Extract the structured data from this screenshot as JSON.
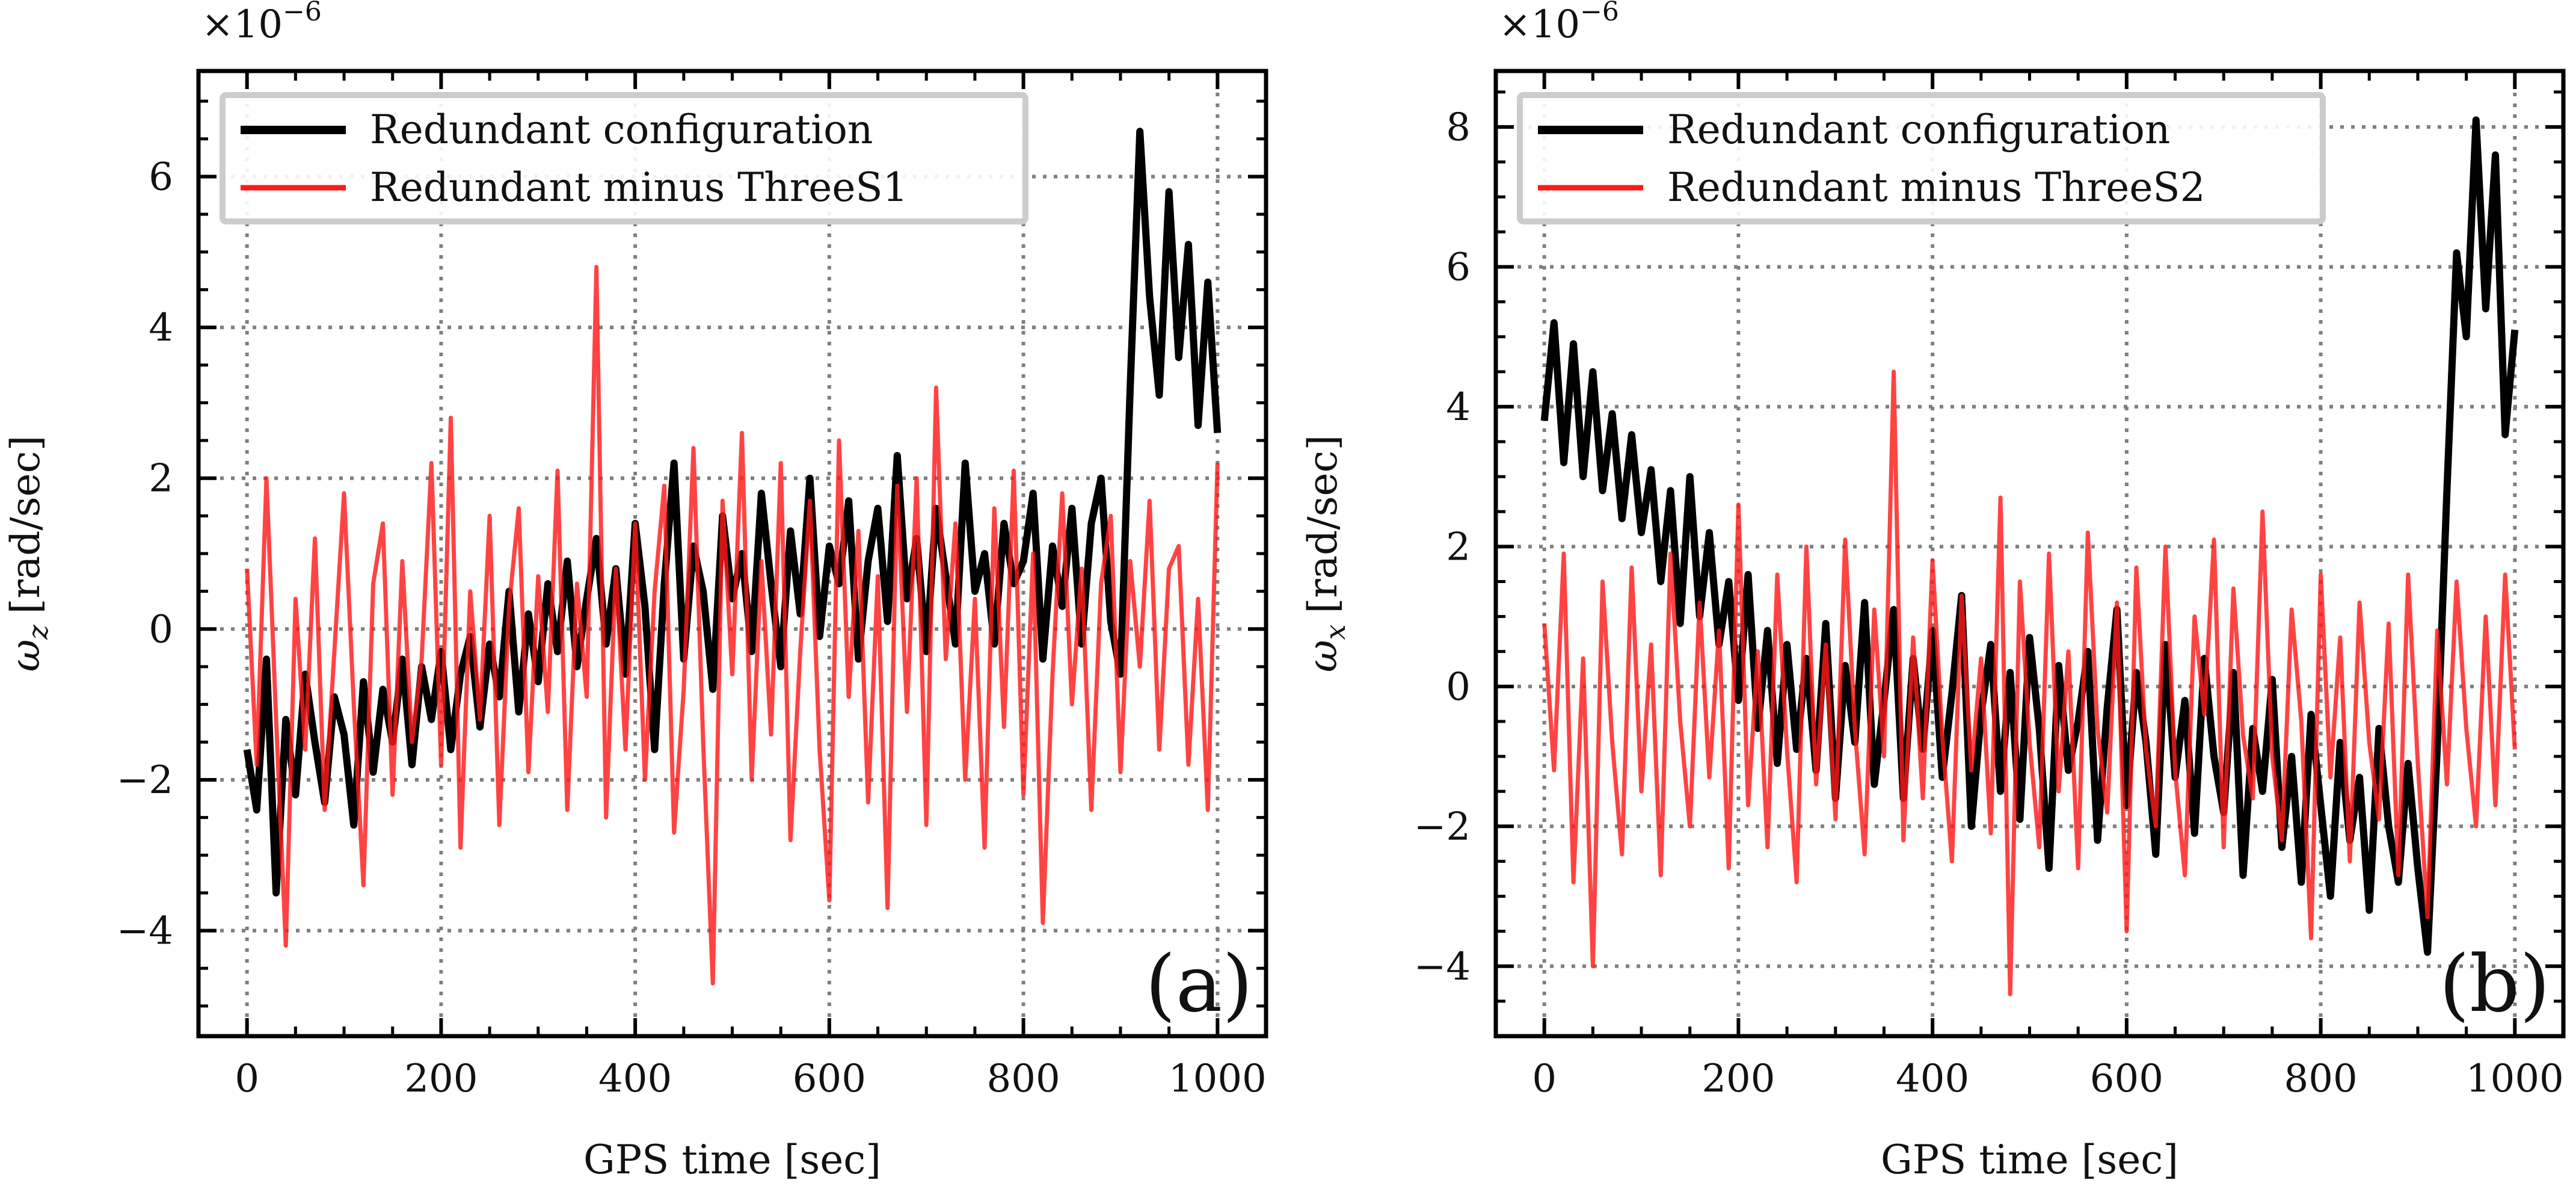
{
  "colors": {
    "series_black": "#000000",
    "series_red": "#ff1a1a",
    "grid": "#7f7f7f",
    "legend_border": "#cccccc"
  },
  "chart_data": [
    {
      "panel": "a",
      "type": "line",
      "panel_label": "(a)",
      "multiplier": "×10",
      "multiplier_exp": "−6",
      "xlabel": "GPS time [sec]",
      "ylabel_symbol": "ω",
      "ylabel_sub": "z",
      "ylabel_unit": "[rad/sec]",
      "xlim": [
        -50,
        1050
      ],
      "ylim": [
        -5.4,
        7.4
      ],
      "xticks": [
        0,
        200,
        400,
        600,
        800,
        1000
      ],
      "xtick_labels": [
        "0",
        "200",
        "400",
        "600",
        "800",
        "1000"
      ],
      "yticks": [
        -4,
        -2,
        0,
        2,
        4,
        6
      ],
      "ytick_labels": [
        "−4",
        "−2",
        "0",
        "2",
        "4",
        "6"
      ],
      "grid": true,
      "legend_position": "top-left",
      "series": [
        {
          "name": "Redundant configuration",
          "color": "#000000",
          "x": [
            0,
            10,
            20,
            30,
            40,
            50,
            60,
            70,
            80,
            90,
            100,
            110,
            120,
            130,
            140,
            150,
            160,
            170,
            180,
            190,
            200,
            210,
            220,
            230,
            240,
            250,
            260,
            270,
            280,
            290,
            300,
            310,
            320,
            330,
            340,
            350,
            360,
            370,
            380,
            390,
            400,
            410,
            420,
            430,
            440,
            450,
            460,
            470,
            480,
            490,
            500,
            510,
            520,
            530,
            540,
            550,
            560,
            570,
            580,
            590,
            600,
            610,
            620,
            630,
            640,
            650,
            660,
            670,
            680,
            690,
            700,
            710,
            720,
            730,
            740,
            750,
            760,
            770,
            780,
            790,
            800,
            810,
            820,
            830,
            840,
            850,
            860,
            870,
            880,
            890,
            900,
            910,
            920,
            930,
            940,
            950,
            960,
            970,
            980,
            990,
            1000
          ],
          "values": [
            -1.6,
            -2.4,
            -0.4,
            -3.5,
            -1.2,
            -2.2,
            -0.6,
            -1.5,
            -2.3,
            -0.9,
            -1.4,
            -2.6,
            -0.7,
            -1.9,
            -0.8,
            -1.5,
            -0.4,
            -1.8,
            -0.5,
            -1.2,
            -0.3,
            -1.6,
            -0.6,
            -0.1,
            -1.3,
            -0.2,
            -0.9,
            0.5,
            -1.1,
            0.2,
            -0.7,
            0.6,
            -0.3,
            0.9,
            -0.5,
            0.4,
            1.2,
            -0.2,
            0.8,
            -0.6,
            1.4,
            0.3,
            -1.6,
            0.6,
            2.2,
            -0.4,
            1.1,
            0.5,
            -0.8,
            1.5,
            0.4,
            1.0,
            -0.3,
            1.8,
            0.6,
            -0.5,
            1.3,
            0.2,
            2.0,
            -0.1,
            1.1,
            0.6,
            1.7,
            -0.4,
            0.9,
            1.6,
            0.1,
            2.3,
            0.4,
            1.2,
            -0.3,
            1.6,
            0.7,
            -0.2,
            2.2,
            0.5,
            1.0,
            -0.2,
            1.4,
            0.6,
            0.9,
            1.8,
            -0.4,
            1.1,
            0.3,
            1.6,
            -0.2,
            1.4,
            2.0,
            0.1,
            -0.6,
            3.2,
            6.6,
            4.4,
            3.1,
            5.8,
            3.6,
            5.1,
            2.7,
            4.6,
            2.6
          ]
        },
        {
          "name": "Redundant minus ThreeS1",
          "color": "#ff1a1a",
          "x": [
            0,
            10,
            20,
            30,
            40,
            50,
            60,
            70,
            80,
            90,
            100,
            110,
            120,
            130,
            140,
            150,
            160,
            170,
            180,
            190,
            200,
            210,
            220,
            230,
            240,
            250,
            260,
            270,
            280,
            290,
            300,
            310,
            320,
            330,
            340,
            350,
            360,
            370,
            380,
            390,
            400,
            410,
            420,
            430,
            440,
            450,
            460,
            470,
            480,
            490,
            500,
            510,
            520,
            530,
            540,
            550,
            560,
            570,
            580,
            590,
            600,
            610,
            620,
            630,
            640,
            650,
            660,
            670,
            680,
            690,
            700,
            710,
            720,
            730,
            740,
            750,
            760,
            770,
            780,
            790,
            800,
            810,
            820,
            830,
            840,
            850,
            860,
            870,
            880,
            890,
            900,
            910,
            920,
            930,
            940,
            950,
            960,
            970,
            980,
            990,
            1000
          ],
          "values": [
            0.8,
            -1.8,
            2.0,
            -1.2,
            -4.2,
            0.4,
            -1.6,
            1.2,
            -2.4,
            -0.3,
            1.8,
            -1.0,
            -3.4,
            0.6,
            1.4,
            -2.2,
            0.9,
            -1.5,
            -0.4,
            2.2,
            -1.8,
            2.8,
            -2.9,
            0.5,
            -1.2,
            1.5,
            -2.6,
            0.3,
            1.6,
            -1.9,
            0.7,
            -1.1,
            2.1,
            -2.4,
            0.6,
            -0.9,
            4.8,
            -2.5,
            0.8,
            -1.6,
            1.4,
            -2.0,
            0.5,
            1.9,
            -2.7,
            -0.8,
            2.4,
            -1.5,
            -4.7,
            1.7,
            -0.6,
            2.6,
            -2.0,
            0.9,
            -1.4,
            2.2,
            -2.8,
            -0.3,
            1.7,
            -1.6,
            -3.6,
            2.5,
            -0.9,
            1.3,
            -2.3,
            0.7,
            -3.7,
            1.9,
            -1.1,
            2.0,
            -2.6,
            3.2,
            -0.4,
            1.4,
            -2.0,
            0.4,
            -2.9,
            1.6,
            -1.3,
            2.1,
            -2.2,
            1.0,
            -3.9,
            -0.6,
            1.8,
            -1.0,
            0.8,
            -2.4,
            0.6,
            1.5,
            -1.9,
            0.9,
            -0.5,
            1.7,
            -1.6,
            0.8,
            1.1,
            -1.8,
            0.4,
            -2.4,
            2.2
          ]
        }
      ]
    },
    {
      "panel": "b",
      "type": "line",
      "panel_label": "(b)",
      "multiplier": "×10",
      "multiplier_exp": "−6",
      "xlabel": "GPS time [sec]",
      "ylabel_symbol": "ω",
      "ylabel_sub": "x",
      "ylabel_unit": "[rad/sec]",
      "xlim": [
        -50,
        1050
      ],
      "ylim": [
        -5.0,
        8.8
      ],
      "xticks": [
        0,
        200,
        400,
        600,
        800,
        1000
      ],
      "xtick_labels": [
        "0",
        "200",
        "400",
        "600",
        "800",
        "1000"
      ],
      "yticks": [
        -4,
        -2,
        0,
        2,
        4,
        6,
        8
      ],
      "ytick_labels": [
        "−4",
        "−2",
        "0",
        "2",
        "4",
        "6",
        "8"
      ],
      "grid": true,
      "legend_position": "top-left",
      "series": [
        {
          "name": "Redundant configuration",
          "color": "#000000",
          "x": [
            0,
            10,
            20,
            30,
            40,
            50,
            60,
            70,
            80,
            90,
            100,
            110,
            120,
            130,
            140,
            150,
            160,
            170,
            180,
            190,
            200,
            210,
            220,
            230,
            240,
            250,
            260,
            270,
            280,
            290,
            300,
            310,
            320,
            330,
            340,
            350,
            360,
            370,
            380,
            390,
            400,
            410,
            420,
            430,
            440,
            450,
            460,
            470,
            480,
            490,
            500,
            510,
            520,
            530,
            540,
            550,
            560,
            570,
            580,
            590,
            600,
            610,
            620,
            630,
            640,
            650,
            660,
            670,
            680,
            690,
            700,
            710,
            720,
            730,
            740,
            750,
            760,
            770,
            780,
            790,
            800,
            810,
            820,
            830,
            840,
            850,
            860,
            870,
            880,
            890,
            900,
            910,
            920,
            930,
            940,
            950,
            960,
            970,
            980,
            990,
            1000
          ],
          "values": [
            3.8,
            5.2,
            3.2,
            4.9,
            3.0,
            4.5,
            2.8,
            3.9,
            2.4,
            3.6,
            2.2,
            3.1,
            1.5,
            2.8,
            0.9,
            3.0,
            1.0,
            2.2,
            0.6,
            1.5,
            -0.2,
            1.6,
            -0.6,
            0.8,
            -1.1,
            0.6,
            -0.9,
            0.4,
            -1.2,
            0.9,
            -1.6,
            0.3,
            -0.8,
            1.2,
            -1.4,
            -0.2,
            1.1,
            -1.6,
            0.4,
            -0.9,
            0.8,
            -1.3,
            -0.1,
            1.3,
            -2.0,
            -0.4,
            0.6,
            -1.5,
            0.2,
            -1.9,
            0.7,
            -0.6,
            -2.6,
            0.3,
            -1.2,
            -0.5,
            0.5,
            -2.2,
            -0.3,
            1.1,
            -1.7,
            0.2,
            -0.8,
            -2.4,
            0.6,
            -1.3,
            -0.2,
            -2.1,
            0.4,
            -1.0,
            -1.8,
            0.2,
            -2.7,
            -0.6,
            -1.5,
            0.1,
            -2.3,
            -1.0,
            -2.8,
            -0.4,
            -1.7,
            -3.0,
            -0.8,
            -2.2,
            -1.3,
            -3.2,
            -0.6,
            -2.0,
            -2.8,
            -1.1,
            -2.6,
            -3.8,
            -0.9,
            2.8,
            6.2,
            5.0,
            8.1,
            5.4,
            7.6,
            3.6,
            5.1
          ]
        },
        {
          "name": "Redundant minus ThreeS2",
          "color": "#ff1a1a",
          "x": [
            0,
            10,
            20,
            30,
            40,
            50,
            60,
            70,
            80,
            90,
            100,
            110,
            120,
            130,
            140,
            150,
            160,
            170,
            180,
            190,
            200,
            210,
            220,
            230,
            240,
            250,
            260,
            270,
            280,
            290,
            300,
            310,
            320,
            330,
            340,
            350,
            360,
            370,
            380,
            390,
            400,
            410,
            420,
            430,
            440,
            450,
            460,
            470,
            480,
            490,
            500,
            510,
            520,
            530,
            540,
            550,
            560,
            570,
            580,
            590,
            600,
            610,
            620,
            630,
            640,
            650,
            660,
            670,
            680,
            690,
            700,
            710,
            720,
            730,
            740,
            750,
            760,
            770,
            780,
            790,
            800,
            810,
            820,
            830,
            840,
            850,
            860,
            870,
            880,
            890,
            900,
            910,
            920,
            930,
            940,
            950,
            960,
            970,
            980,
            990,
            1000
          ],
          "values": [
            0.9,
            -1.2,
            1.9,
            -2.8,
            0.4,
            -4.0,
            1.5,
            -0.8,
            -2.4,
            1.7,
            -1.5,
            0.6,
            -2.7,
            1.9,
            -0.5,
            -2.0,
            1.2,
            -1.3,
            0.8,
            -2.6,
            2.6,
            -1.7,
            0.5,
            -2.3,
            1.6,
            -0.9,
            -2.8,
            2.0,
            -1.4,
            0.6,
            -1.9,
            2.1,
            -0.6,
            -2.4,
            1.1,
            -1.0,
            4.5,
            -2.2,
            0.7,
            -1.6,
            1.8,
            -0.7,
            -2.5,
            1.3,
            -1.2,
            0.4,
            -2.1,
            2.7,
            -4.4,
            1.5,
            -0.8,
            -2.3,
            1.9,
            -1.5,
            0.5,
            -2.6,
            2.2,
            -0.6,
            -1.8,
            1.2,
            -3.5,
            1.7,
            -0.9,
            -2.0,
            2.0,
            -1.2,
            -2.7,
            1.0,
            -0.4,
            2.1,
            -2.3,
            1.4,
            -0.7,
            -1.6,
            2.5,
            -1.0,
            -2.2,
            1.1,
            -0.5,
            -3.6,
            1.6,
            -1.3,
            0.7,
            -2.5,
            1.2,
            -0.8,
            -1.9,
            0.9,
            -2.7,
            1.6,
            -1.1,
            -3.3,
            0.8,
            -1.4,
            1.5,
            -0.6,
            -2.0,
            1.0,
            -1.7,
            1.6,
            -0.9
          ]
        }
      ]
    }
  ]
}
